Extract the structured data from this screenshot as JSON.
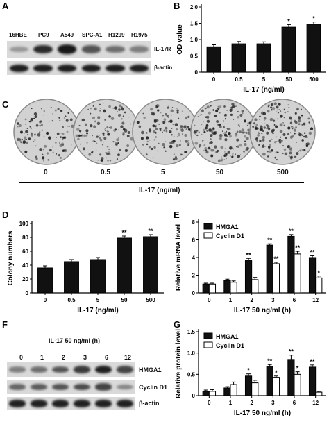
{
  "panels": {
    "A": {
      "label": "A",
      "cell_lines": [
        "16HBE",
        "PC9",
        "A549",
        "SPC-A1",
        "H1299",
        "H1975"
      ],
      "bands": [
        {
          "name": "IL-17R",
          "intensity": [
            0.2,
            0.85,
            0.95,
            0.6,
            0.45,
            0.35
          ]
        },
        {
          "name": "β-actin",
          "intensity": [
            0.9,
            0.9,
            0.9,
            0.9,
            0.9,
            0.9
          ]
        }
      ]
    },
    "B": {
      "label": "B"
    },
    "C": {
      "label": "C",
      "doses": [
        "0",
        "0.5",
        "5",
        "50",
        "500"
      ],
      "xlabel": "IL-17 (ng/ml)",
      "colony_density": [
        0.35,
        0.45,
        0.5,
        0.75,
        0.8
      ]
    },
    "D": {
      "label": "D"
    },
    "E": {
      "label": "E"
    },
    "F": {
      "label": "F",
      "header": "IL-17 50 ng/ml (h)",
      "timepoints": [
        "0",
        "1",
        "2",
        "3",
        "6",
        "12"
      ],
      "bands": [
        {
          "name": "HMGA1",
          "intensity": [
            0.35,
            0.45,
            0.6,
            0.75,
            0.9,
            0.7
          ]
        },
        {
          "name": "Cyclin D1",
          "intensity": [
            0.5,
            0.55,
            0.6,
            0.65,
            0.7,
            0.3
          ]
        },
        {
          "name": "β-actin",
          "intensity": [
            0.9,
            0.9,
            0.9,
            0.9,
            0.9,
            0.9
          ]
        }
      ]
    },
    "G": {
      "label": "G"
    }
  },
  "chart_data": [
    {
      "id": "B",
      "type": "bar",
      "categories": [
        "0",
        "0.5",
        "5",
        "50",
        "500"
      ],
      "values": [
        0.78,
        0.87,
        0.87,
        1.38,
        1.47
      ],
      "errors": [
        0.06,
        0.07,
        0.06,
        0.08,
        0.07
      ],
      "significance": [
        "",
        "",
        "",
        "*",
        "*"
      ],
      "xlabel": "IL-17 (ng/ml)",
      "ylabel": "OD value",
      "ylim": [
        0,
        2.0
      ],
      "yticks": [
        0,
        0.5,
        1.0,
        1.5,
        2.0
      ],
      "ytick_labels": [
        "0",
        "0.5",
        "1.0",
        "1.5",
        "2.0"
      ],
      "colors": [
        "#111111"
      ]
    },
    {
      "id": "D",
      "type": "bar",
      "categories": [
        "0",
        "0.5",
        "5",
        "50",
        "500"
      ],
      "values": [
        36,
        45,
        48,
        79,
        81
      ],
      "errors": [
        3,
        3,
        3,
        3,
        3
      ],
      "significance": [
        "",
        "",
        "",
        "**",
        "**"
      ],
      "xlabel": "IL-17 (ng/ml)",
      "ylabel": "Colony numbers",
      "ylim": [
        0,
        100
      ],
      "yticks": [
        0,
        20,
        40,
        60,
        80,
        100
      ],
      "ytick_labels": [
        "0",
        "20",
        "40",
        "60",
        "80",
        "100"
      ],
      "colors": [
        "#111111"
      ]
    },
    {
      "id": "E",
      "type": "bar",
      "categories": [
        "0",
        "1",
        "2",
        "3",
        "6",
        "12"
      ],
      "series": [
        {
          "name": "HMGA1",
          "values": [
            1.0,
            1.4,
            3.7,
            5.4,
            6.4,
            4.0
          ],
          "errors": [
            0.1,
            0.15,
            0.2,
            0.15,
            0.2,
            0.2
          ],
          "significance": [
            "",
            "",
            "**",
            "**",
            "**",
            "**"
          ],
          "color": "#111111"
        },
        {
          "name": "Cyclin D1",
          "values": [
            1.0,
            1.2,
            1.5,
            3.3,
            4.4,
            1.7
          ],
          "errors": [
            0.1,
            0.15,
            0.25,
            0.15,
            0.3,
            0.2
          ],
          "significance": [
            "",
            "",
            "",
            "**",
            "**",
            "*"
          ],
          "color": "#ffffff"
        }
      ],
      "xlabel": "IL-17 50 ng/ml (h)",
      "ylabel": "Relative mRNA level",
      "ylim": [
        0,
        8
      ],
      "yticks": [
        0,
        2,
        4,
        6,
        8
      ],
      "ytick_labels": [
        "0",
        "2",
        "4",
        "6",
        "8"
      ],
      "legend": "top-left"
    },
    {
      "id": "G",
      "type": "bar",
      "categories": [
        "0",
        "1",
        "2",
        "3",
        "6",
        "12"
      ],
      "series": [
        {
          "name": "HMGA1",
          "values": [
            0.1,
            0.18,
            0.46,
            0.69,
            0.85,
            0.67
          ],
          "errors": [
            0.03,
            0.03,
            0.05,
            0.04,
            0.1,
            0.05
          ],
          "significance": [
            "",
            "",
            "*",
            "**",
            "**",
            "**"
          ],
          "color": "#111111"
        },
        {
          "name": "Cyclin D1",
          "values": [
            0.1,
            0.26,
            0.3,
            0.43,
            0.5,
            0.08
          ],
          "errors": [
            0.04,
            0.06,
            0.06,
            0.03,
            0.06,
            0.02
          ],
          "significance": [
            "",
            "",
            "",
            "*",
            "*",
            ""
          ],
          "color": "#ffffff"
        }
      ],
      "xlabel": "IL-17 50 ng/ml (h)",
      "ylabel": "Relative protein level",
      "ylim": [
        0,
        1.5
      ],
      "yticks": [
        0,
        0.5,
        1.0,
        1.5
      ],
      "ytick_labels": [
        "0",
        "0.5",
        "1.0",
        "1.5"
      ],
      "legend": "top-left"
    }
  ]
}
